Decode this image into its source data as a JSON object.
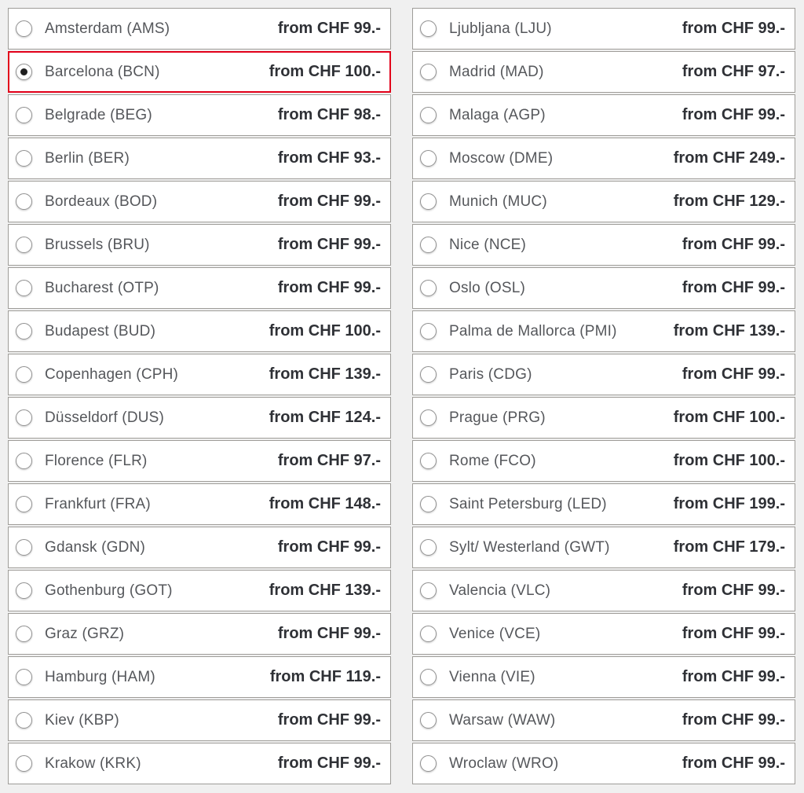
{
  "colors": {
    "page_background": "#f0f0f0",
    "row_background": "#ffffff",
    "row_border": "#9e9c98",
    "selected_border_red": "#e2001a",
    "city_text": "#55575b",
    "price_text": "#2f3136"
  },
  "icons": {
    "radio_unselected": "radio-button-icon (empty circle)",
    "radio_selected": "radio-button-icon (circle with dark dot)"
  },
  "columns": [
    {
      "name": "left",
      "items": [
        {
          "label": "Amsterdam (AMS)",
          "price": "from CHF 99.-",
          "selected": false
        },
        {
          "label": "Barcelona (BCN)",
          "price": "from CHF 100.-",
          "selected": true
        },
        {
          "label": "Belgrade (BEG)",
          "price": "from CHF 98.-",
          "selected": false
        },
        {
          "label": "Berlin (BER)",
          "price": "from CHF 93.-",
          "selected": false
        },
        {
          "label": "Bordeaux (BOD)",
          "price": "from CHF 99.-",
          "selected": false
        },
        {
          "label": "Brussels (BRU)",
          "price": "from CHF 99.-",
          "selected": false
        },
        {
          "label": "Bucharest (OTP)",
          "price": "from CHF 99.-",
          "selected": false
        },
        {
          "label": "Budapest (BUD)",
          "price": "from CHF 100.-",
          "selected": false
        },
        {
          "label": "Copenhagen (CPH)",
          "price": "from CHF 139.-",
          "selected": false
        },
        {
          "label": "Düsseldorf (DUS)",
          "price": "from CHF 124.-",
          "selected": false
        },
        {
          "label": "Florence (FLR)",
          "price": "from CHF 97.-",
          "selected": false
        },
        {
          "label": "Frankfurt (FRA)",
          "price": "from CHF 148.-",
          "selected": false
        },
        {
          "label": "Gdansk (GDN)",
          "price": "from CHF 99.-",
          "selected": false
        },
        {
          "label": "Gothenburg (GOT)",
          "price": "from CHF 139.-",
          "selected": false
        },
        {
          "label": "Graz (GRZ)",
          "price": "from CHF 99.-",
          "selected": false
        },
        {
          "label": "Hamburg (HAM)",
          "price": "from CHF 119.-",
          "selected": false
        },
        {
          "label": "Kiev (KBP)",
          "price": "from CHF 99.-",
          "selected": false
        },
        {
          "label": "Krakow (KRK)",
          "price": "from CHF 99.-",
          "selected": false
        }
      ]
    },
    {
      "name": "right",
      "items": [
        {
          "label": "Ljubljana (LJU)",
          "price": "from CHF 99.-",
          "selected": false
        },
        {
          "label": "Madrid (MAD)",
          "price": "from CHF 97.-",
          "selected": false
        },
        {
          "label": "Malaga (AGP)",
          "price": "from CHF 99.-",
          "selected": false
        },
        {
          "label": "Moscow (DME)",
          "price": "from CHF 249.-",
          "selected": false
        },
        {
          "label": "Munich (MUC)",
          "price": "from CHF 129.-",
          "selected": false
        },
        {
          "label": "Nice (NCE)",
          "price": "from CHF 99.-",
          "selected": false
        },
        {
          "label": "Oslo (OSL)",
          "price": "from CHF 99.-",
          "selected": false
        },
        {
          "label": "Palma de Mallorca (PMI)",
          "price": "from CHF 139.-",
          "selected": false
        },
        {
          "label": "Paris (CDG)",
          "price": "from CHF 99.-",
          "selected": false
        },
        {
          "label": "Prague (PRG)",
          "price": "from CHF 100.-",
          "selected": false
        },
        {
          "label": "Rome (FCO)",
          "price": "from CHF 100.-",
          "selected": false
        },
        {
          "label": "Saint Petersburg (LED)",
          "price": "from CHF 199.-",
          "selected": false
        },
        {
          "label": "Sylt/ Westerland (GWT)",
          "price": "from CHF 179.-",
          "selected": false
        },
        {
          "label": "Valencia (VLC)",
          "price": "from CHF 99.-",
          "selected": false
        },
        {
          "label": "Venice (VCE)",
          "price": "from CHF 99.-",
          "selected": false
        },
        {
          "label": "Vienna (VIE)",
          "price": "from CHF 99.-",
          "selected": false
        },
        {
          "label": "Warsaw (WAW)",
          "price": "from CHF 99.-",
          "selected": false
        },
        {
          "label": "Wroclaw (WRO)",
          "price": "from CHF 99.-",
          "selected": false
        }
      ]
    }
  ]
}
